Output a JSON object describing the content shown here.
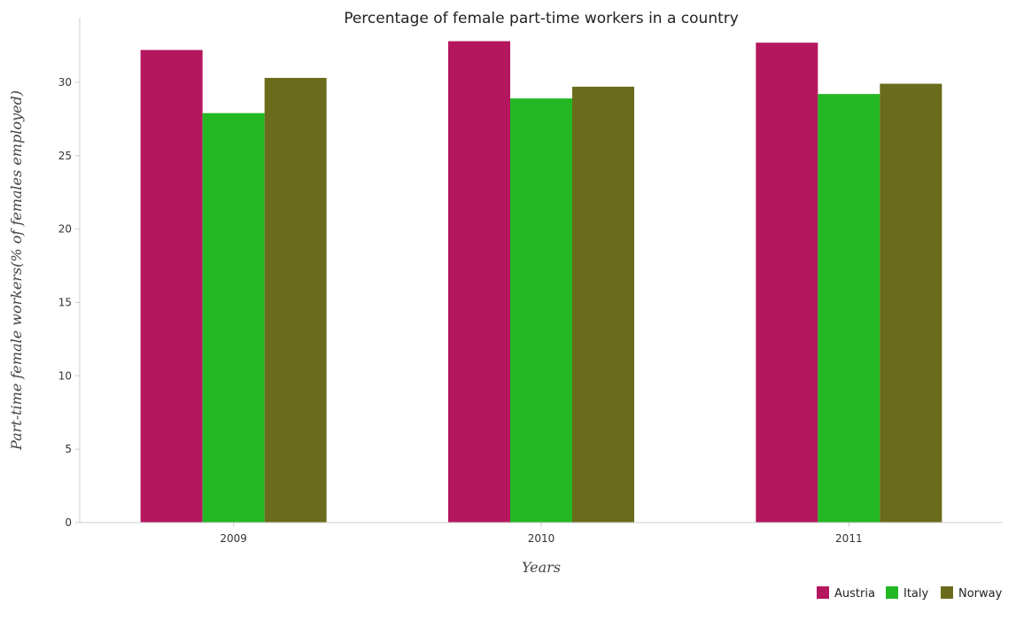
{
  "chart_data": {
    "type": "bar",
    "title": "Percentage of female part-time workers in a country",
    "xlabel": "Years",
    "ylabel": "Part-time female workers(% of females employed)",
    "categories": [
      "2009",
      "2010",
      "2011"
    ],
    "series": [
      {
        "name": "Austria",
        "values": [
          32.2,
          32.8,
          32.7
        ],
        "color": "#b5175f"
      },
      {
        "name": "Italy",
        "values": [
          27.9,
          28.9,
          29.2
        ],
        "color": "#23b823"
      },
      {
        "name": "Norway",
        "values": [
          30.3,
          29.7,
          29.9
        ],
        "color": "#6b6b1c"
      }
    ],
    "ylim": [
      0,
      34.4
    ],
    "yticks": [
      0,
      5,
      10,
      15,
      20,
      25,
      30
    ],
    "grid": false,
    "legend_position": "bottom-right"
  }
}
